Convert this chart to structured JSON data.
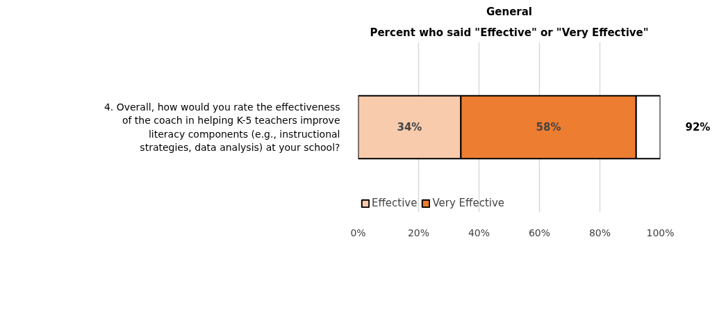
{
  "chart_data": {
    "type": "bar",
    "orientation": "horizontal",
    "stacked": true,
    "title": "General",
    "subtitle": "Percent who said \"Effective\" or \"Very Effective\"",
    "categories": [
      "4. Overall, how would you rate the effectiveness of the coach in helping K-5 teachers improve literacy components (e.g., instructional strategies, data analysis) at your school?"
    ],
    "series": [
      {
        "name": "Effective",
        "color": "#f8cbad",
        "values": [
          34
        ],
        "value_labels": [
          "34%"
        ]
      },
      {
        "name": "Very Effective",
        "color": "#ed7d31",
        "values": [
          58
        ],
        "value_labels": [
          "58%"
        ]
      },
      {
        "color": "#ffffff",
        "values": [
          8
        ]
      }
    ],
    "annotations": [
      "92%"
    ],
    "xlim": [
      0,
      100
    ],
    "xticks": [
      {
        "value": 0,
        "label": "0%"
      },
      {
        "value": 20,
        "label": "20%"
      },
      {
        "value": 40,
        "label": "40%"
      },
      {
        "value": 60,
        "label": "60%"
      },
      {
        "value": 80,
        "label": "80%"
      },
      {
        "value": 100,
        "label": "100%"
      }
    ],
    "grid": "x",
    "legend": "bottom left"
  }
}
